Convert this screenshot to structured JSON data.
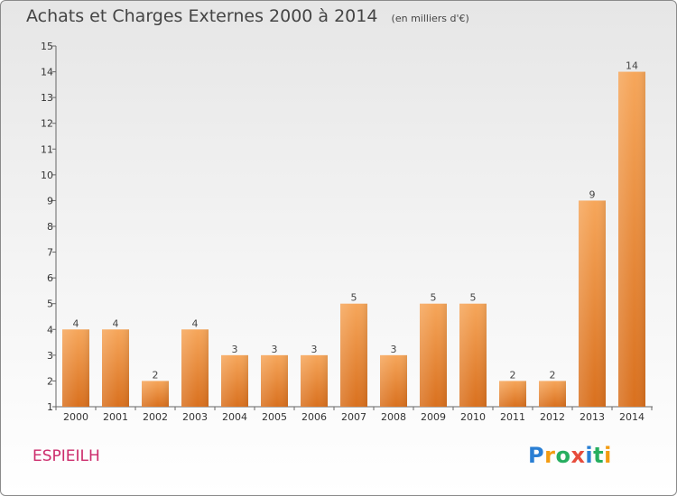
{
  "header": {
    "title": "Achats et Charges Externes 2000 à 2014",
    "subtitle": "(en milliers d'€)"
  },
  "footer": {
    "commune": "ESPIEILH",
    "logo_text": "Proxiti"
  },
  "colors": {
    "bar_light": "#f6a65a",
    "bar_dark": "#d9701e",
    "commune": "#cc2b6b"
  },
  "chart_data": {
    "type": "bar",
    "title": "Achats et Charges Externes 2000 à 2014",
    "subtitle": "(en milliers d'€)",
    "xlabel": "",
    "ylabel": "",
    "categories": [
      "2000",
      "2001",
      "2002",
      "2003",
      "2004",
      "2005",
      "2006",
      "2007",
      "2008",
      "2009",
      "2010",
      "2011",
      "2012",
      "2013",
      "2014"
    ],
    "values": [
      4,
      4,
      2,
      4,
      3,
      3,
      3,
      5,
      3,
      5,
      5,
      2,
      2,
      9,
      14
    ],
    "ylim": [
      1,
      15
    ],
    "yticks": [
      1,
      2,
      3,
      4,
      5,
      6,
      7,
      8,
      9,
      10,
      11,
      12,
      13,
      14,
      15
    ],
    "grid": false,
    "data_labels": true
  }
}
